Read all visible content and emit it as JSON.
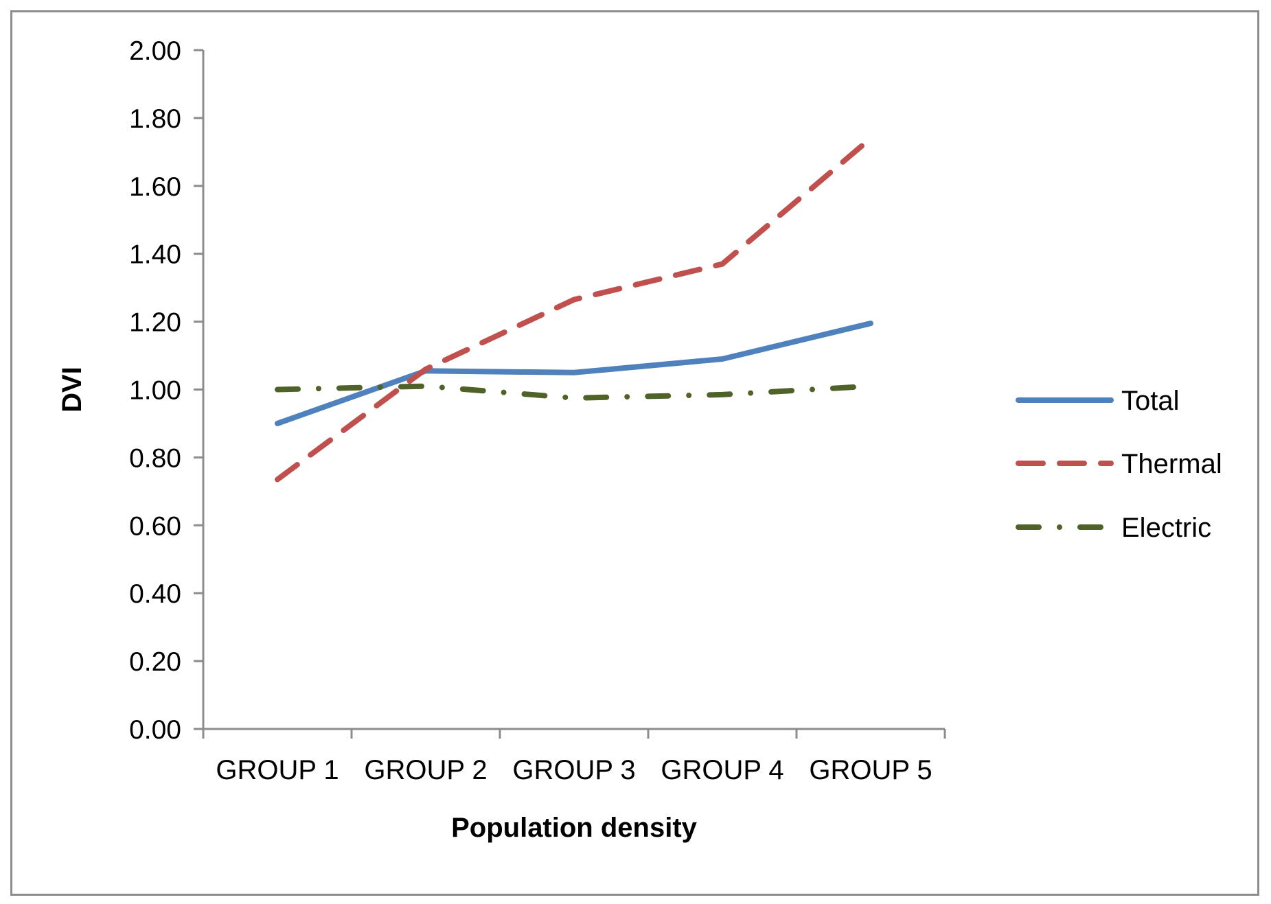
{
  "chart_data": {
    "type": "line",
    "title": "",
    "xlabel": "Population density",
    "ylabel": "DVI",
    "categories": [
      "GROUP 1",
      "GROUP 2",
      "GROUP 3",
      "GROUP 4",
      "GROUP 5"
    ],
    "ylim": [
      0,
      2
    ],
    "ytick_step": 0.2,
    "ytick_labels": [
      "0.00",
      "0.20",
      "0.40",
      "0.60",
      "0.80",
      "1.00",
      "1.20",
      "1.40",
      "1.60",
      "1.80",
      "2.00"
    ],
    "grid": false,
    "legend_position": "right",
    "series": [
      {
        "name": "Total",
        "values": [
          0.9,
          1.055,
          1.05,
          1.09,
          1.195
        ],
        "color": "#4f81bd",
        "style": "solid"
      },
      {
        "name": "Thermal",
        "values": [
          0.735,
          1.06,
          1.265,
          1.37,
          1.74
        ],
        "color": "#c0504d",
        "style": "dash"
      },
      {
        "name": "Electric",
        "values": [
          1.0,
          1.01,
          0.975,
          0.985,
          1.01
        ],
        "color": "#4f6228",
        "style": "dash-dot"
      }
    ]
  }
}
